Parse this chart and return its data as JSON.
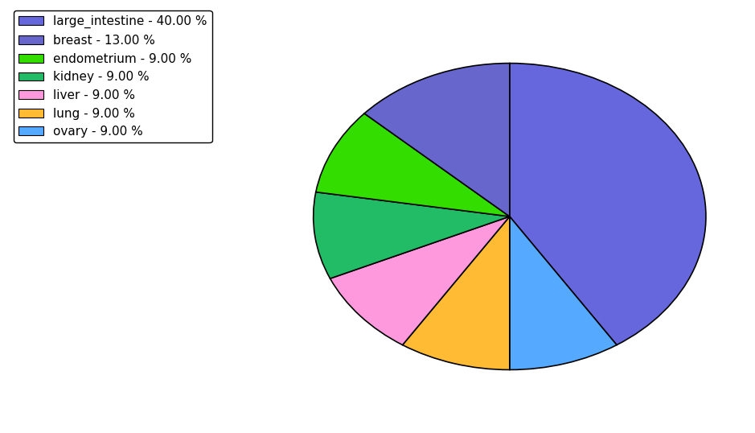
{
  "labels": [
    "large_intestine",
    "ovary",
    "lung",
    "liver",
    "kidney",
    "endometrium",
    "breast"
  ],
  "values": [
    40,
    9,
    9,
    9,
    9,
    9,
    13
  ],
  "colors": [
    "#6666dd",
    "#55aaff",
    "#ffbb33",
    "#ff99dd",
    "#22bb66",
    "#33dd00",
    "#6666cc"
  ],
  "legend_labels": [
    "large_intestine - 40.00 %",
    "breast - 13.00 %",
    "endometrium - 9.00 %",
    "kidney - 9.00 %",
    "liver - 9.00 %",
    "lung - 9.00 %",
    "ovary - 9.00 %"
  ],
  "legend_colors": [
    "#6666dd",
    "#6666cc",
    "#33dd00",
    "#22bb66",
    "#ff99dd",
    "#ffbb33",
    "#55aaff"
  ],
  "figsize": [
    9.39,
    5.38
  ],
  "dpi": 100,
  "startangle": 90,
  "background_color": "#ffffff"
}
